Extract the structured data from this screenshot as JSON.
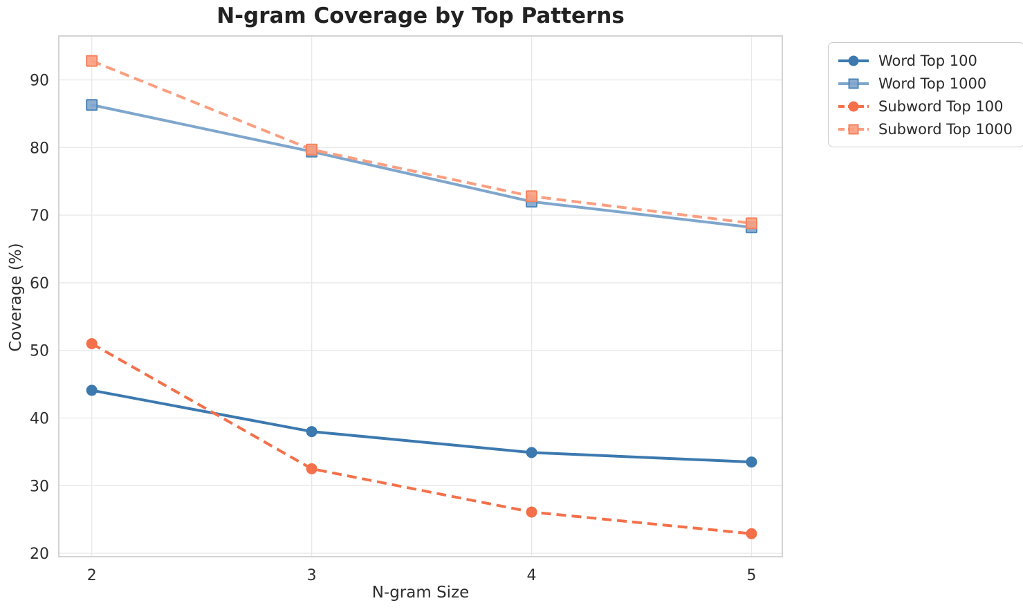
{
  "chart_data": {
    "type": "line",
    "title": "N-gram Coverage by Top Patterns",
    "xlabel": "N-gram Size",
    "ylabel": "Coverage (%)",
    "x": [
      2,
      3,
      4,
      5
    ],
    "xticks": [
      2,
      3,
      4,
      5
    ],
    "yticks": [
      20,
      30,
      40,
      50,
      60,
      70,
      80,
      90
    ],
    "xlim": [
      1.85,
      5.14
    ],
    "ylim": [
      19.5,
      96.5
    ],
    "grid": true,
    "legend_position": "outside-upper-right",
    "series": [
      {
        "name": "Word Top 100",
        "values": [
          44.1,
          38.0,
          34.9,
          33.5
        ],
        "color": "#3C79AF",
        "line_style": "solid",
        "marker": "circle"
      },
      {
        "name": "Word Top 1000",
        "values": [
          86.3,
          79.4,
          72.0,
          68.2
        ],
        "color": "#7FA6CC",
        "marker_edge": "#4E86B8",
        "line_style": "solid",
        "marker": "square"
      },
      {
        "name": "Subword Top 100",
        "values": [
          51.0,
          32.5,
          26.1,
          22.9
        ],
        "color": "#F3704A",
        "line_style": "dashed",
        "marker": "circle"
      },
      {
        "name": "Subword Top 1000",
        "values": [
          92.8,
          79.7,
          72.8,
          68.8
        ],
        "color": "#FA9E80",
        "marker_edge": "#F4825F",
        "line_style": "dashed",
        "marker": "square"
      }
    ],
    "style_colors": {
      "background": "#FFFFFF",
      "grid": "#E8E8E8",
      "spine": "#CFCFCF",
      "text": "#262626"
    }
  }
}
